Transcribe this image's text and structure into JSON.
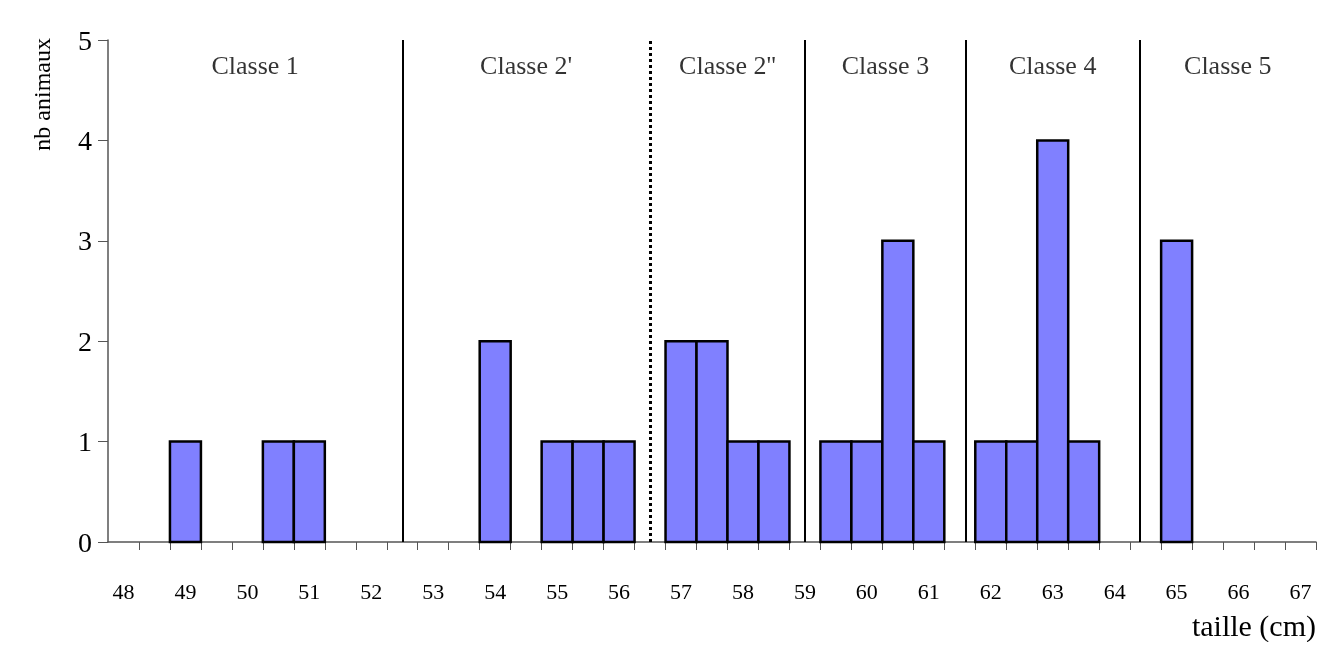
{
  "chart_data": {
    "type": "histogram",
    "xlabel": "taille (cm)",
    "ylabel": "nb animaux",
    "bins": [
      48.75,
      49.25,
      49.75,
      50.25,
      50.75,
      51.25,
      51.75,
      52.25,
      52.75,
      53.25,
      53.75,
      54.25,
      54.75,
      55.25,
      55.75,
      56.25,
      56.75,
      57.25,
      57.75,
      58.25,
      58.75,
      59.25,
      59.75,
      60.25,
      60.75,
      61.25,
      61.75,
      62.25,
      62.75,
      63.25,
      63.75,
      64.25,
      64.75,
      65.25
    ],
    "values": [
      1,
      0,
      0,
      1,
      1,
      0,
      0,
      0,
      0,
      0,
      2,
      0,
      1,
      1,
      1,
      0,
      2,
      2,
      1,
      1,
      0,
      1,
      1,
      3,
      1,
      0,
      1,
      1,
      4,
      1,
      0,
      0,
      3
    ],
    "color": "#8080ff",
    "xlim": [
      47.75,
      67.25
    ],
    "xticks": [
      48,
      49,
      50,
      51,
      52,
      53,
      54,
      55,
      56,
      57,
      58,
      59,
      60,
      61,
      62,
      63,
      64,
      65,
      66,
      67,
      {
        "value": 48.25,
        "label": null
      },
      {
        "value": 48.75,
        "label": null
      },
      {
        "value": 49.25,
        "label": null
      },
      {
        "value": 49.75,
        "label": null
      },
      {
        "value": 50.25,
        "label": null
      },
      {
        "value": 50.75,
        "label": null
      },
      {
        "value": 51.25,
        "label": null
      },
      {
        "value": 51.75,
        "label": null
      },
      {
        "value": 52.25,
        "label": null
      },
      {
        "value": 52.75,
        "label": null
      },
      {
        "value": 53.25,
        "label": null
      },
      {
        "value": 53.75,
        "label": null
      },
      {
        "value": 54.25,
        "label": null
      },
      {
        "value": 54.75,
        "label": null
      },
      {
        "value": 55.25,
        "label": null
      },
      {
        "value": 55.75,
        "label": null
      },
      {
        "value": 56.25,
        "label": null
      },
      {
        "value": 56.75,
        "label": null
      },
      {
        "value": 57.25,
        "label": null
      },
      {
        "value": 57.75,
        "label": null
      },
      {
        "value": 58.25,
        "label": null
      },
      {
        "value": 58.75,
        "label": null
      },
      {
        "value": 59.25,
        "label": null
      },
      {
        "value": 59.75,
        "label": null
      },
      {
        "value": 60.25,
        "label": null
      },
      {
        "value": 60.75,
        "label": null
      },
      {
        "value": 61.25,
        "label": null
      },
      {
        "value": 61.75,
        "label": null
      },
      {
        "value": 62.25,
        "label": null
      },
      {
        "value": 62.75,
        "label": null
      },
      {
        "value": 63.25,
        "label": null
      },
      {
        "value": 63.75,
        "label": null
      },
      {
        "value": 64.25,
        "label": null
      },
      {
        "value": 64.75,
        "label": null
      },
      {
        "value": 65.25,
        "label": null
      },
      {
        "value": 65.75,
        "label": null
      },
      {
        "value": 66.25,
        "label": null
      },
      {
        "value": 66.75,
        "label": null
      },
      {
        "value": 67.25,
        "label": null
      }
    ],
    "ylim": [
      0,
      5
    ],
    "yticks": [
      0,
      1,
      2,
      3,
      4,
      5
    ],
    "grid": false,
    "ref_lines": [
      {
        "axis": "x",
        "value": 52.5,
        "color": "#000000",
        "line_style": "solid"
      },
      {
        "axis": "x",
        "value": 56.5,
        "color": "#000000",
        "line_style": "dotted"
      },
      {
        "axis": "x",
        "value": 59,
        "color": "#000000",
        "line_style": "solid"
      },
      {
        "axis": "x",
        "value": 61.6,
        "color": "#000000",
        "line_style": "solid"
      },
      {
        "axis": "x",
        "value": 64.4,
        "color": "#000000",
        "line_style": "solid"
      }
    ],
    "annotations": [
      "Classe 1",
      "Classe 2'",
      "Classe 2''",
      "Classe 3",
      "Classe 4",
      "Classe 5"
    ]
  }
}
